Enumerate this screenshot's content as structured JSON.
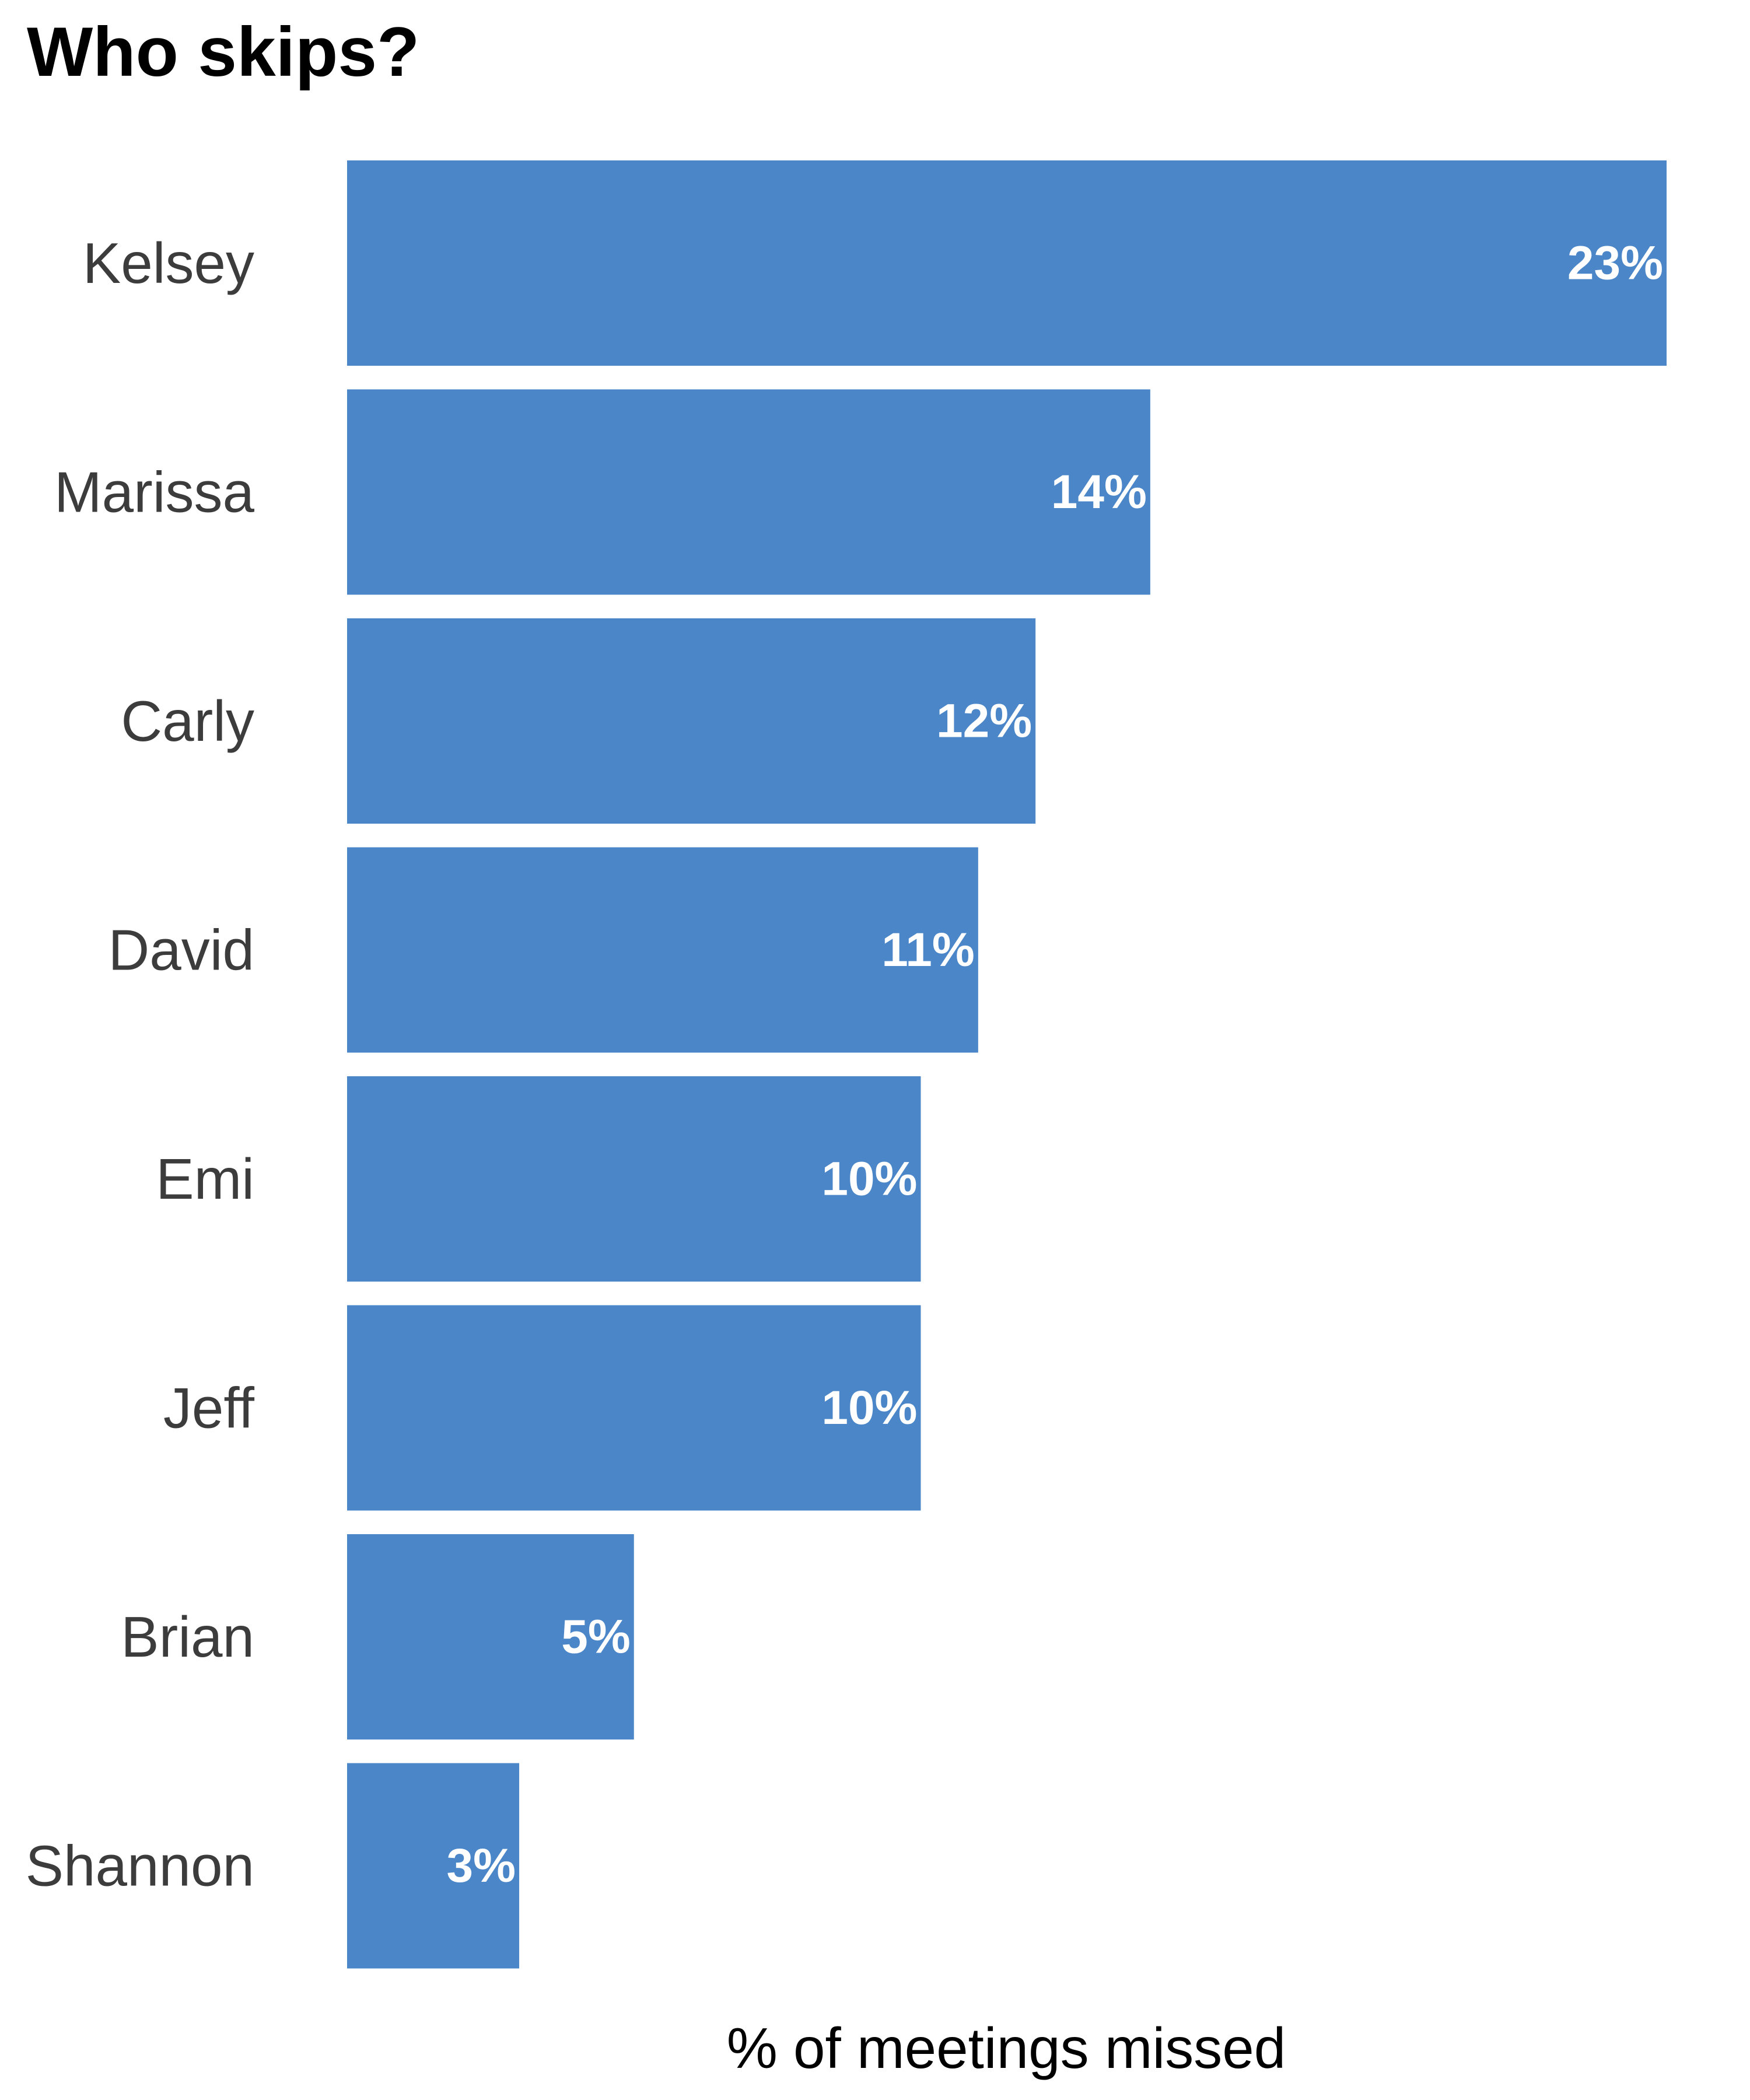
{
  "chart_data": {
    "type": "bar",
    "orientation": "horizontal",
    "title": "Who skips?",
    "xlabel": "% of meetings missed",
    "ylabel": "",
    "categories": [
      "Kelsey",
      "Marissa",
      "Carly",
      "David",
      "Emi",
      "Jeff",
      "Brian",
      "Shannon"
    ],
    "values": [
      23,
      14,
      12,
      11,
      10,
      10,
      5,
      3
    ],
    "value_labels": [
      "23%",
      "14%",
      "12%",
      "11%",
      "10%",
      "10%",
      "5%",
      "3%"
    ],
    "bar_color": "#4a86c8",
    "grid": false,
    "legend": "none"
  }
}
